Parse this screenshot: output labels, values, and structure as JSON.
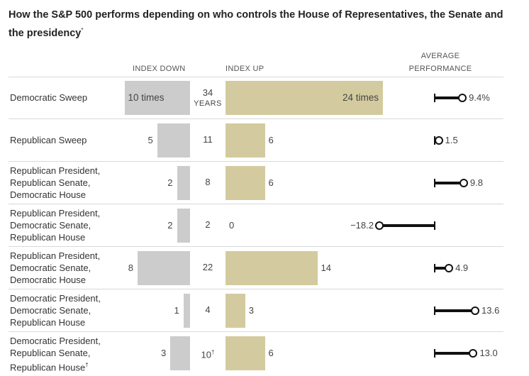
{
  "title": "How the S&P 500 performs depending on who controls the House of Representatives, the Senate and the presidency",
  "title_note_mark": "*",
  "headers": {
    "index_down": "INDEX DOWN",
    "index_up": "INDEX UP",
    "avg_line1": "AVERAGE",
    "avg_line2": "PERFORMANCE"
  },
  "colors": {
    "down_bar": "#cccccc",
    "up_bar": "#d3cb9f",
    "marker": "#111111"
  },
  "chart_data": {
    "type": "bar",
    "title": "How the S&P 500 performs depending on who controls the House of Representatives, the Senate and the presidency",
    "categories": [
      "Democratic Sweep",
      "Republican Sweep",
      "Republican President, Republican Senate, Democratic House",
      "Republican President, Democratic Senate, Republican House",
      "Republican President, Democratic Senate, Democratic House",
      "Democratic President, Democratic Senate, Republican House",
      "Democratic President, Republican Senate, Republican House"
    ],
    "series": [
      {
        "name": "Index down (years)",
        "values": [
          10,
          5,
          2,
          2,
          8,
          1,
          3
        ]
      },
      {
        "name": "Index up (years)",
        "values": [
          24,
          6,
          6,
          0,
          14,
          3,
          6
        ]
      },
      {
        "name": "Total years",
        "values": [
          34,
          11,
          8,
          2,
          22,
          4,
          10
        ]
      },
      {
        "name": "Average performance (%)",
        "values": [
          9.4,
          1.5,
          9.8,
          -18.2,
          4.9,
          13.6,
          13.0
        ]
      }
    ],
    "bars_xlim": [
      0,
      24
    ],
    "perf_xlim": [
      -18.2,
      13.6
    ]
  },
  "rows": [
    {
      "lines": [
        "Democratic Sweep"
      ],
      "down": "10 times",
      "years": "34",
      "years_unit": "YEARS",
      "up": "24 times",
      "perf": "9.4%"
    },
    {
      "lines": [
        "Republican Sweep"
      ],
      "down": "5",
      "years": "11",
      "up": "6",
      "perf": "1.5"
    },
    {
      "lines": [
        "Republican President,",
        "Republican Senate,",
        "Democratic House"
      ],
      "down": "2",
      "years": "8",
      "up": "6",
      "perf": "9.8"
    },
    {
      "lines": [
        "Republican President,",
        "Democratic Senate,",
        "Republican House"
      ],
      "down": "2",
      "years": "2",
      "up": "0",
      "perf": "−18.2"
    },
    {
      "lines": [
        "Republican President,",
        "Democratic Senate,",
        "Democratic House"
      ],
      "down": "8",
      "years": "22",
      "up": "14",
      "perf": "4.9"
    },
    {
      "lines": [
        "Democratic President,",
        "Democratic Senate,",
        "Republican House"
      ],
      "down": "1",
      "years": "4",
      "up": "3",
      "perf": "13.6"
    },
    {
      "lines": [
        "Democratic President,",
        "Republican Senate,",
        "Republican House"
      ],
      "label_mark": "†",
      "down": "3",
      "years": "10",
      "years_mark": "†",
      "up": "6",
      "perf": "13.0"
    }
  ]
}
